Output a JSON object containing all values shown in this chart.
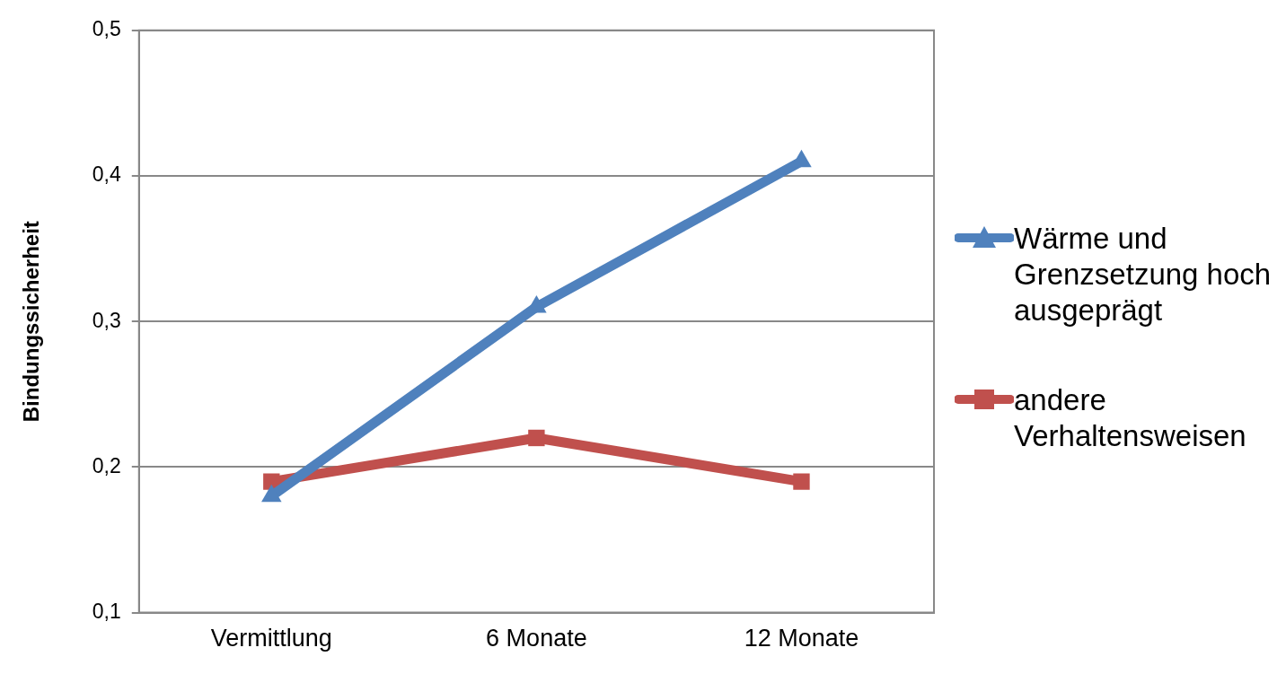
{
  "chart_data": {
    "type": "line",
    "ylabel": "Bindungssicherheit",
    "categories": [
      "Vermittlung",
      "6 Monate",
      "12 Monate"
    ],
    "series": [
      {
        "name": "Wärme und Grenzsetzung hoch ausgeprägt",
        "color": "#4f81bd",
        "marker": "triangle",
        "values": [
          0.18,
          0.31,
          0.41
        ]
      },
      {
        "name": "andere Verhaltensweisen",
        "color": "#c0504d",
        "marker": "square",
        "values": [
          0.19,
          0.22,
          0.19
        ]
      }
    ],
    "ylim": [
      0.1,
      0.5
    ],
    "yticks": [
      {
        "value": 0.1,
        "label": "0,1"
      },
      {
        "value": 0.2,
        "label": "0,2"
      },
      {
        "value": 0.3,
        "label": "0,3"
      },
      {
        "value": 0.4,
        "label": "0,4"
      },
      {
        "value": 0.5,
        "label": "0,5"
      }
    ],
    "grid": "y",
    "legend": "right",
    "line_style": "solid"
  }
}
